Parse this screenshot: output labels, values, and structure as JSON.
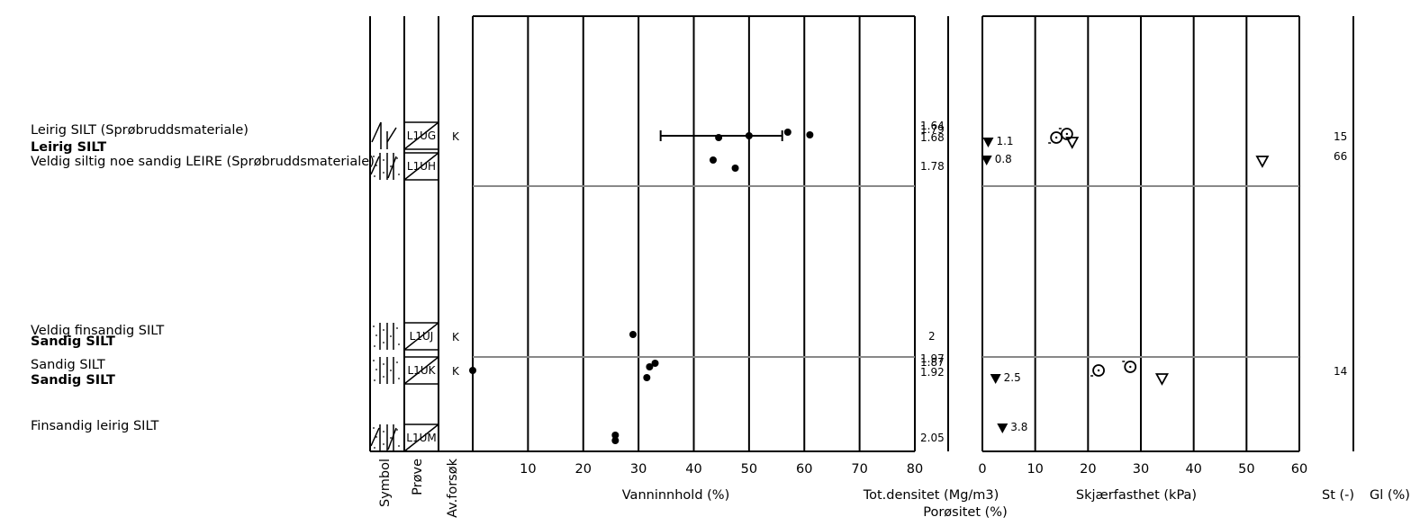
{
  "soil_layers": [
    {
      "lines": [
        {
          "text": "Leirig SILT (Sprøbruddsmateriale)",
          "bold": false
        },
        {
          "text": "Leirig SILT",
          "bold": true
        }
      ],
      "sample": "L1UG",
      "avforsok": "K"
    },
    {
      "lines": [
        {
          "text": "Veldig siltig noe sandig LEIRE (Sprøbruddsmateriale)",
          "bold": false
        }
      ],
      "sample": "L1UH",
      "avforsok": ""
    },
    {
      "lines": [
        {
          "text": "Veldig finsandig SILT",
          "bold": false
        },
        {
          "text": "Sandig SILT",
          "bold": true
        }
      ],
      "sample": "L1UJ",
      "avforsok": "K"
    },
    {
      "lines": [
        {
          "text": "Sandig SILT",
          "bold": false
        },
        {
          "text": "Sandig SILT",
          "bold": true
        }
      ],
      "sample": "L1UK",
      "avforsok": "K"
    },
    {
      "lines": [
        {
          "text": "Finsandig leirig SILT",
          "bold": false
        }
      ],
      "sample": "L1UM",
      "avforsok": ""
    }
  ],
  "column_labels": {
    "symbol": "Symbol",
    "prove": "Prøve",
    "avforsok": "Av.forsøk"
  },
  "chart_data": [
    {
      "type": "scatter",
      "name": "water_content",
      "xlabel": "Vanninnhold (%)",
      "xlim": [
        0,
        80
      ],
      "xticks": [
        "10",
        "20",
        "30",
        "40",
        "50",
        "60",
        "70",
        "80"
      ],
      "points_by_sample": [
        {
          "sample": "L1UG",
          "values": [
            44.5,
            50,
            57,
            61
          ],
          "range": [
            34,
            56
          ]
        },
        {
          "sample": "L1UH",
          "values": [
            43.5,
            47.5
          ]
        },
        {
          "sample": "L1UJ",
          "values": [
            29
          ]
        },
        {
          "sample": "L1UK",
          "values": [
            0,
            31.5,
            32,
            33
          ]
        },
        {
          "sample": "L1UM",
          "values": [
            25.8,
            25.8
          ]
        }
      ]
    },
    {
      "type": "table",
      "name": "density",
      "xlabel": "Tot.densitet (Mg/m3)",
      "xlabel2": "Porøsitet (%)",
      "values": [
        {
          "sample": "L1UG",
          "labels": [
            "1.64",
            "1.79",
            "1.68"
          ]
        },
        {
          "sample": "L1UH",
          "labels": [
            "1.78"
          ]
        },
        {
          "sample": "L1UJ",
          "labels": [
            "2"
          ]
        },
        {
          "sample": "L1UK",
          "labels": [
            "1.97",
            "1.87",
            "1.92"
          ]
        },
        {
          "sample": "L1UM",
          "labels": [
            "2.05"
          ]
        }
      ]
    },
    {
      "type": "scatter",
      "name": "shear_strength",
      "xlabel": "Skjærfasthet (kPa)",
      "xlim": [
        0,
        60
      ],
      "xticks": [
        "0",
        "10",
        "20",
        "30",
        "40",
        "50",
        "60"
      ],
      "remoulded": [
        {
          "sample": "L1UG",
          "value": 1.1,
          "label": "1.1"
        },
        {
          "sample": "L1UH",
          "value": 0.8,
          "label": "0.8"
        },
        {
          "sample": "L1UK",
          "value": 2.5,
          "label": "2.5"
        },
        {
          "sample": "L1UM",
          "value": 3.8,
          "label": "3.8"
        }
      ],
      "cone_triangles": [
        {
          "sample": "L1UG",
          "value": 17
        },
        {
          "sample": "L1UH",
          "value": 53
        },
        {
          "sample": "L1UK",
          "value": 34
        }
      ],
      "circles": [
        {
          "sample": "L1UG",
          "values": [
            14,
            16
          ]
        },
        {
          "sample": "L1UK",
          "values": [
            22,
            28
          ]
        }
      ]
    },
    {
      "type": "table",
      "name": "sensitivity",
      "xlabel": "St (-)",
      "xlabel2": "Gl (%)",
      "values": [
        {
          "sample": "L1UG",
          "label": "15"
        },
        {
          "sample": "L1UH",
          "label": "66"
        },
        {
          "sample": "L1UK",
          "label": "14"
        }
      ]
    }
  ]
}
